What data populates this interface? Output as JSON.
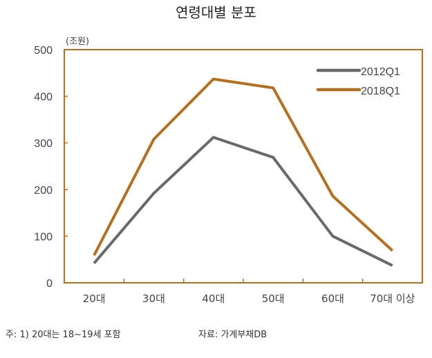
{
  "chart_data": {
    "type": "line",
    "title": "연령대별 분포",
    "ylabel": "(조원)",
    "categories": [
      "20대",
      "30대",
      "40대",
      "50대",
      "60대",
      "70대 이상"
    ],
    "yticks": [
      0,
      100,
      200,
      300,
      400,
      500
    ],
    "ylim": [
      0,
      500
    ],
    "grid": false,
    "legend_position": "top-right",
    "series": [
      {
        "name": "2012Q1",
        "color": "#696969",
        "values": [
          42,
          192,
          312,
          269,
          100,
          37
        ]
      },
      {
        "name": "2018Q1",
        "color": "#b5701f",
        "values": [
          59,
          308,
          437,
          418,
          186,
          69
        ]
      }
    ],
    "frame_color": "#b5701f"
  },
  "footnotes": {
    "note": "주:  1) 20대는 18~19세 포함",
    "source": "자료:  가계부채DB"
  }
}
